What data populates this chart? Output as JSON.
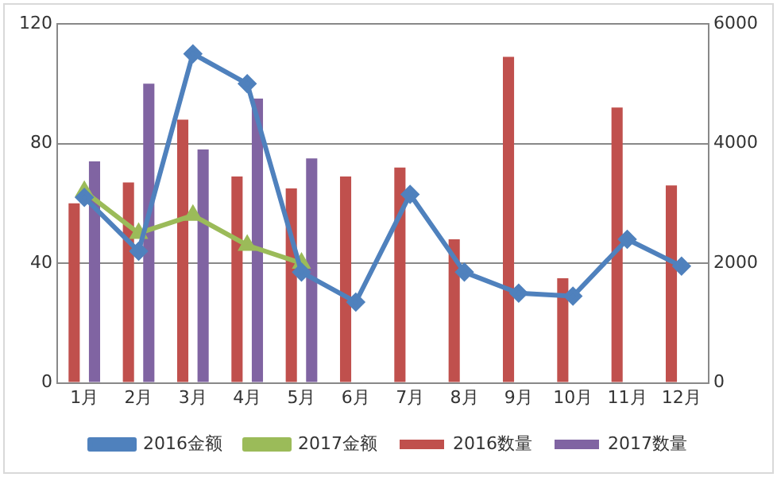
{
  "chart_data": {
    "type": "bar",
    "categories": [
      "1月",
      "2月",
      "3月",
      "4月",
      "5月",
      "6月",
      "7月",
      "8月",
      "9月",
      "10月",
      "11月",
      "12月"
    ],
    "series": [
      {
        "name": "2016数量",
        "color": "#c0504d",
        "values": [
          60,
          67,
          88,
          69,
          65,
          69,
          72,
          48,
          109,
          35,
          92,
          66
        ]
      },
      {
        "name": "2017数量",
        "color": "#8064a2",
        "values": [
          74,
          100,
          78,
          95,
          75,
          null,
          null,
          null,
          null,
          null,
          null,
          null
        ]
      },
      {
        "name": "2016金额",
        "type": "line",
        "axis": "y2",
        "marker": "diamond",
        "color": "#4f81bd",
        "values": [
          3100,
          2200,
          5500,
          5000,
          1850,
          1350,
          3150,
          1850,
          1500,
          1450,
          2400,
          1950
        ]
      },
      {
        "name": "2017金额",
        "type": "line",
        "axis": "y2",
        "marker": "triangle",
        "color": "#9bbb59",
        "values": [
          3200,
          2500,
          2800,
          2300,
          2000,
          null,
          null,
          null,
          null,
          null,
          null,
          null
        ]
      }
    ],
    "ylim": [
      0,
      120
    ],
    "yticks": [
      0,
      40,
      80,
      120
    ],
    "y2lim": [
      0,
      6000
    ],
    "y2ticks": [
      0,
      2000,
      4000,
      6000
    ],
    "grid": "y",
    "legend": "bottom"
  }
}
